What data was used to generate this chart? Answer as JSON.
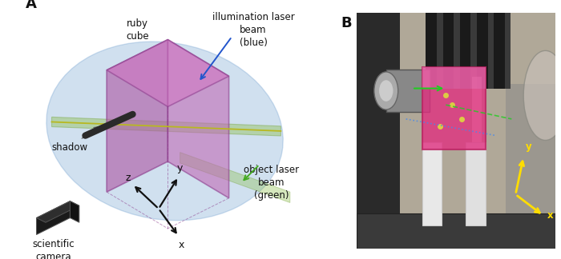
{
  "panel_A_label": "A",
  "panel_B_label": "B",
  "bg_color": "#ffffff",
  "label_fontsize": 13,
  "annotation_fontsize": 8.5,
  "cube_color": "#c060b0",
  "cube_alpha": 0.55,
  "cube_edge_color": "#8b3a8b",
  "blue_ellipse_color": "#6699cc",
  "blue_ellipse_alpha": 0.3,
  "green_sheet_color": "#88bb44",
  "green_sheet_alpha": 0.4,
  "green_line_color": "#b8b820",
  "axis_arrow_color": "#111111",
  "blue_arrow_color": "#2255cc",
  "green_arrow_color": "#44aa22",
  "shadow_color": "#2a2a2a",
  "text_color": "#111111",
  "ruby_cube_label": "ruby\ncube",
  "illumination_label": "illumination laser\nbeam\n(blue)",
  "object_label": "object laser\nbeam\n(green)",
  "shadow_label": "shadow",
  "camera_label": "scientific\ncamera",
  "axis_x_label": "x",
  "axis_y_label": "y",
  "axis_z_label": "z"
}
